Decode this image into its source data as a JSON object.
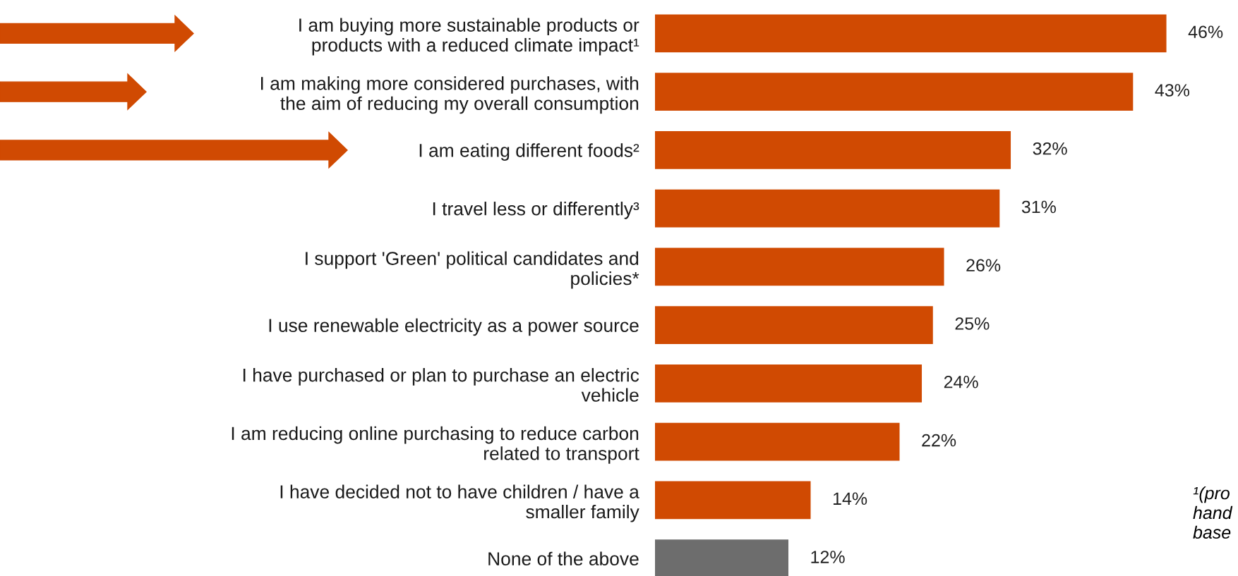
{
  "chart_data": {
    "type": "bar",
    "orientation": "horizontal",
    "categories": [
      "I am buying more sustainable products or\nproducts with a reduced climate impact¹",
      "I am making more considered purchases, with\nthe aim of reducing my overall consumption",
      "I am eating different foods²",
      "I travel less or differently³",
      "I support 'Green' political candidates and\npolicies*",
      "I use renewable electricity as a power source",
      "I have purchased or plan to purchase an electric\nvehicle",
      "I am reducing online purchasing to reduce carbon\nrelated to transport",
      "I have decided not to have children / have a\nsmaller family",
      "None of the above"
    ],
    "values": [
      46,
      43,
      32,
      31,
      26,
      25,
      24,
      22,
      14,
      12
    ],
    "colors": [
      "#d04a02",
      "#d04a02",
      "#d04a02",
      "#d04a02",
      "#d04a02",
      "#d04a02",
      "#d04a02",
      "#d04a02",
      "#d04a02",
      "#6d6d6d"
    ],
    "value_labels": [
      "46%",
      "43%",
      "32%",
      "31%",
      "26%",
      "25%",
      "24%",
      "22%",
      "14%",
      "12%"
    ],
    "annotations": [
      "¹(pro\nhand\nbase"
    ],
    "grid": false,
    "legend": false
  }
}
